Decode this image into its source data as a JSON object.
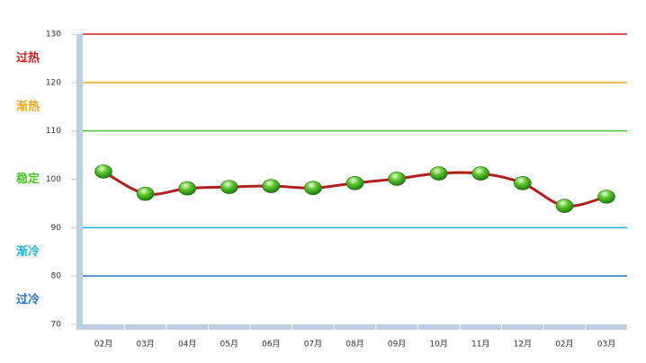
{
  "chart_data": {
    "type": "line",
    "categories": [
      "02月",
      "03月",
      "04月",
      "05月",
      "06月",
      "07月",
      "08月",
      "09月",
      "10月",
      "11月",
      "12月",
      "02月",
      "03月"
    ],
    "series": [
      {
        "color": "#b02020",
        "values": [
          101.6,
          97.0,
          98.1,
          98.4,
          98.6,
          98.2,
          99.2,
          100.1,
          101.2,
          101.2,
          99.2,
          94.5,
          96.4
        ]
      }
    ],
    "ylim": [
      70,
      130
    ],
    "yticks": [
      70,
      80,
      90,
      100,
      110,
      120,
      130
    ],
    "zones": [
      {
        "label": "过热",
        "from": 120,
        "to": 130,
        "color": "#d42020"
      },
      {
        "label": "渐热",
        "from": 110,
        "to": 120,
        "color": "#f2a81e"
      },
      {
        "label": "稳定",
        "from": 90,
        "to": 110,
        "color": "#4cc42c"
      },
      {
        "label": "渐冷",
        "from": 80,
        "to": 90,
        "color": "#1eb4d8"
      },
      {
        "label": "过冷",
        "from": 70,
        "to": 80,
        "color": "#2a74c4"
      }
    ]
  }
}
